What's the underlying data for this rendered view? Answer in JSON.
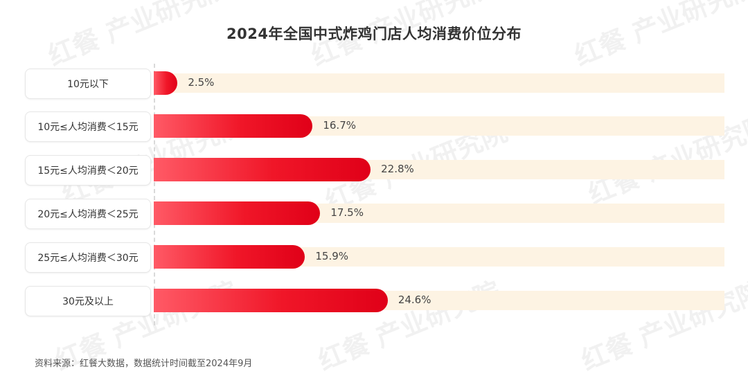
{
  "chart_data": {
    "type": "bar",
    "orientation": "horizontal",
    "title": "2024年全国中式炸鸡门店人均消费价位分布",
    "categories": [
      "10元以下",
      "10元≤人均消费＜15元",
      "15元≤人均消费＜20元",
      "20元≤人均消费＜25元",
      "25元≤人均消费＜30元",
      "30元及以上"
    ],
    "values": [
      2.5,
      16.7,
      22.8,
      17.5,
      15.9,
      24.6
    ],
    "value_labels": [
      "2.5%",
      "16.7%",
      "22.8%",
      "17.5%",
      "15.9%",
      "24.6%"
    ],
    "xlim": [
      0,
      60
    ],
    "grid": false,
    "bar_color": "#e60012",
    "track_color": "#fdf3e3"
  },
  "watermark": "红餐 产业研究院",
  "source": "资料来源：红餐大数据，数据统计时间截至2024年9月"
}
